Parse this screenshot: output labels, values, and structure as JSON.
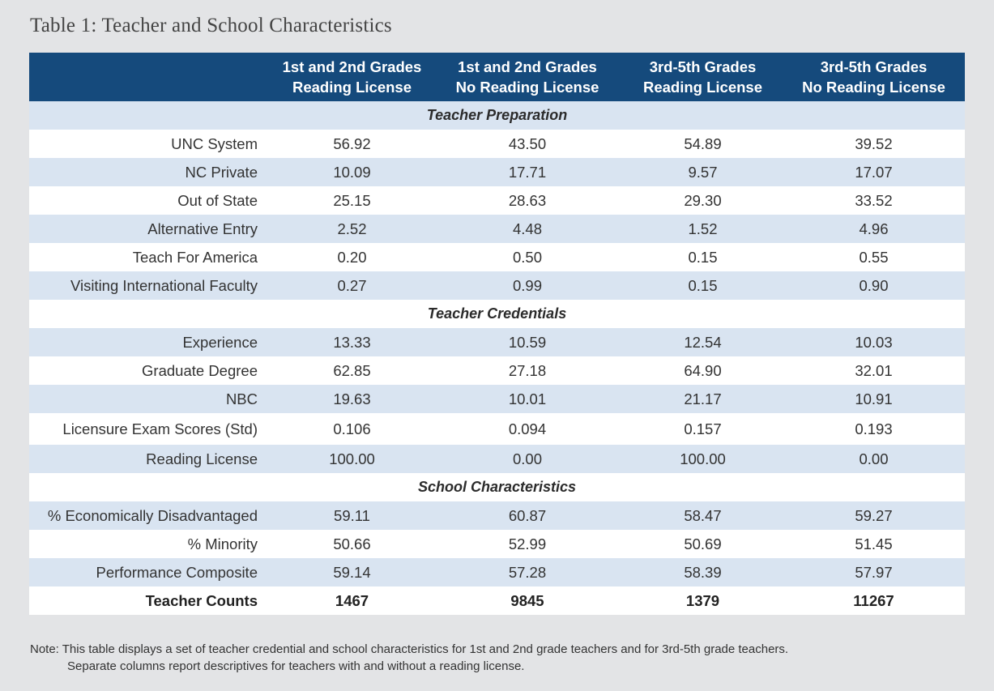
{
  "title": "Table 1: Teacher and School Characteristics",
  "header": {
    "col1_line1": "1st and 2nd Grades",
    "col1_line2": "Reading License",
    "col2_line1": "1st and 2nd Grades",
    "col2_line2": "No Reading License",
    "col3_line1": "3rd-5th Grades",
    "col3_line2": "Reading License",
    "col4_line1": "3rd-5th Grades",
    "col4_line2": "No Reading License"
  },
  "sections": {
    "preparation": "Teacher Preparation",
    "credentials": "Teacher Credentials",
    "school": "School Characteristics"
  },
  "rows": {
    "unc": {
      "label": "UNC System",
      "v": [
        "56.92",
        "43.50",
        "54.89",
        "39.52"
      ]
    },
    "ncp": {
      "label": "NC Private",
      "v": [
        "10.09",
        "17.71",
        "9.57",
        "17.07"
      ]
    },
    "oos": {
      "label": "Out of State",
      "v": [
        "25.15",
        "28.63",
        "29.30",
        "33.52"
      ]
    },
    "alt": {
      "label": "Alternative Entry",
      "v": [
        "2.52",
        "4.48",
        "1.52",
        "4.96"
      ]
    },
    "tfa": {
      "label": "Teach For America",
      "v": [
        "0.20",
        "0.50",
        "0.15",
        "0.55"
      ]
    },
    "vif": {
      "label": "Visiting International Faculty",
      "v": [
        "0.27",
        "0.99",
        "0.15",
        "0.90"
      ]
    },
    "exp": {
      "label": "Experience",
      "v": [
        "13.33",
        "10.59",
        "12.54",
        "10.03"
      ]
    },
    "grad": {
      "label": "Graduate Degree",
      "v": [
        "62.85",
        "27.18",
        "64.90",
        "32.01"
      ]
    },
    "nbc": {
      "label": "NBC",
      "v": [
        "19.63",
        "10.01",
        "21.17",
        "10.91"
      ]
    },
    "lic": {
      "label": "Licensure Exam Scores (Std)",
      "v": [
        "0.106",
        "0.094",
        "0.157",
        "0.193"
      ]
    },
    "read": {
      "label": "Reading License",
      "v": [
        "100.00",
        "0.00",
        "100.00",
        "0.00"
      ]
    },
    "econ": {
      "label": "% Economically Disadvantaged",
      "v": [
        "59.11",
        "60.87",
        "58.47",
        "59.27"
      ]
    },
    "min": {
      "label": "% Minority",
      "v": [
        "50.66",
        "52.99",
        "50.69",
        "51.45"
      ]
    },
    "perf": {
      "label": "Performance Composite",
      "v": [
        "59.14",
        "57.28",
        "58.39",
        "57.97"
      ]
    },
    "count": {
      "label": "Teacher Counts",
      "v": [
        "1467",
        "9845",
        "1379",
        "11267"
      ]
    }
  },
  "note": {
    "line1": "Note: This table displays a set of teacher credential and school characteristics for 1st and 2nd grade teachers and for 3rd-5th grade teachers.",
    "line2": "Separate columns report descriptives for teachers with and without a reading license."
  },
  "colors": {
    "header_bg": "#154a7c",
    "shade_row": "#d9e4f1",
    "page_bg": "#e3e4e6"
  }
}
